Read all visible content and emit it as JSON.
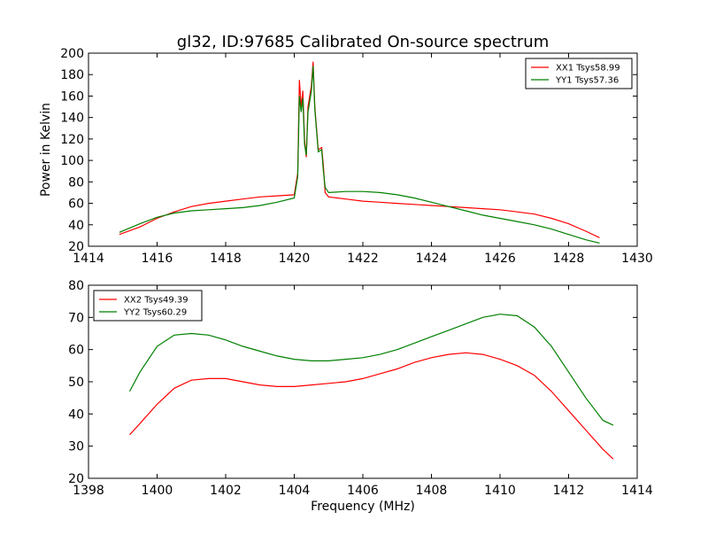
{
  "figure": {
    "title": "gl32, ID:97685 Calibrated On-source spectrum"
  },
  "chart_data": [
    {
      "type": "line",
      "title": "gl32, ID:97685 Calibrated On-source spectrum",
      "xlabel": "",
      "ylabel": "Power in Kelvin",
      "xlim": [
        1414,
        1430
      ],
      "ylim": [
        20,
        200
      ],
      "xticks": [
        1414,
        1416,
        1418,
        1420,
        1422,
        1424,
        1426,
        1428,
        1430
      ],
      "yticks": [
        20,
        40,
        60,
        80,
        100,
        120,
        140,
        160,
        180,
        200
      ],
      "grid": false,
      "legend_position": "top-right",
      "series": [
        {
          "name": "XX1 Tsys58.99",
          "color": "#ff0000",
          "x": [
            1414.9,
            1415.5,
            1416.0,
            1416.5,
            1417.0,
            1417.5,
            1418.0,
            1418.5,
            1419.0,
            1419.5,
            1420.0,
            1420.1,
            1420.15,
            1420.2,
            1420.25,
            1420.3,
            1420.35,
            1420.4,
            1420.5,
            1420.55,
            1420.6,
            1420.7,
            1420.8,
            1420.85,
            1420.9,
            1421.0,
            1421.5,
            1422.0,
            1422.5,
            1423.0,
            1423.5,
            1424.0,
            1424.5,
            1425.0,
            1425.5,
            1426.0,
            1426.5,
            1427.0,
            1427.5,
            1428.0,
            1428.5,
            1428.9
          ],
          "values": [
            31,
            38,
            46,
            52,
            57,
            60,
            62,
            64,
            66,
            67,
            68,
            88,
            175,
            150,
            165,
            120,
            103,
            150,
            170,
            192,
            150,
            110,
            112,
            95,
            70,
            66,
            64,
            62,
            61,
            60,
            59,
            58,
            57,
            56,
            55,
            54,
            52,
            50,
            46,
            41,
            34,
            28
          ]
        },
        {
          "name": "YY1 Tsys57.36",
          "color": "#008000",
          "x": [
            1414.9,
            1415.5,
            1416.0,
            1416.5,
            1417.0,
            1417.5,
            1418.0,
            1418.5,
            1419.0,
            1419.5,
            1420.0,
            1420.1,
            1420.15,
            1420.2,
            1420.25,
            1420.3,
            1420.35,
            1420.4,
            1420.5,
            1420.55,
            1420.6,
            1420.7,
            1420.8,
            1420.85,
            1420.9,
            1421.0,
            1421.5,
            1422.0,
            1422.5,
            1423.0,
            1423.5,
            1424.0,
            1424.5,
            1425.0,
            1425.5,
            1426.0,
            1426.5,
            1427.0,
            1427.5,
            1428.0,
            1428.5,
            1428.9
          ],
          "values": [
            33,
            41,
            47,
            51,
            53,
            54,
            55,
            56,
            58,
            61,
            65,
            85,
            160,
            145,
            158,
            115,
            105,
            145,
            165,
            188,
            148,
            108,
            110,
            90,
            75,
            70,
            71,
            71,
            70,
            68,
            65,
            61,
            57,
            53,
            49,
            46,
            43,
            40,
            36,
            31,
            26,
            23
          ]
        }
      ]
    },
    {
      "type": "line",
      "title": "",
      "xlabel": "Frequency (MHz)",
      "ylabel": "",
      "xlim": [
        1398,
        1414
      ],
      "ylim": [
        20,
        80
      ],
      "xticks": [
        1398,
        1400,
        1402,
        1404,
        1406,
        1408,
        1410,
        1412,
        1414
      ],
      "yticks": [
        20,
        30,
        40,
        50,
        60,
        70,
        80
      ],
      "grid": false,
      "legend_position": "top-left",
      "series": [
        {
          "name": "XX2 Tsys49.39",
          "color": "#ff0000",
          "x": [
            1399.2,
            1399.5,
            1400.0,
            1400.5,
            1401.0,
            1401.5,
            1402.0,
            1402.5,
            1403.0,
            1403.5,
            1404.0,
            1404.5,
            1405.0,
            1405.5,
            1406.0,
            1406.5,
            1407.0,
            1407.5,
            1408.0,
            1408.5,
            1409.0,
            1409.5,
            1410.0,
            1410.5,
            1411.0,
            1411.5,
            1412.0,
            1412.5,
            1413.0,
            1413.3
          ],
          "values": [
            33.5,
            37,
            43,
            48,
            50.5,
            51,
            51,
            50,
            49,
            48.5,
            48.5,
            49,
            49.5,
            50,
            51,
            52.5,
            54,
            56,
            57.5,
            58.5,
            59,
            58.5,
            57,
            55,
            52,
            47,
            41,
            35,
            29,
            26
          ]
        },
        {
          "name": "YY2 Tsys60.29",
          "color": "#008000",
          "x": [
            1399.2,
            1399.5,
            1400.0,
            1400.5,
            1401.0,
            1401.5,
            1402.0,
            1402.5,
            1403.0,
            1403.5,
            1404.0,
            1404.5,
            1405.0,
            1405.5,
            1406.0,
            1406.5,
            1407.0,
            1407.5,
            1408.0,
            1408.5,
            1409.0,
            1409.5,
            1410.0,
            1410.5,
            1411.0,
            1411.5,
            1412.0,
            1412.5,
            1413.0,
            1413.3
          ],
          "values": [
            47,
            53,
            61,
            64.5,
            65,
            64.5,
            63,
            61,
            59.5,
            58,
            57,
            56.5,
            56.5,
            57,
            57.5,
            58.5,
            60,
            62,
            64,
            66,
            68,
            70,
            71,
            70.5,
            67,
            61,
            53,
            45,
            38,
            36.5
          ]
        }
      ]
    }
  ]
}
